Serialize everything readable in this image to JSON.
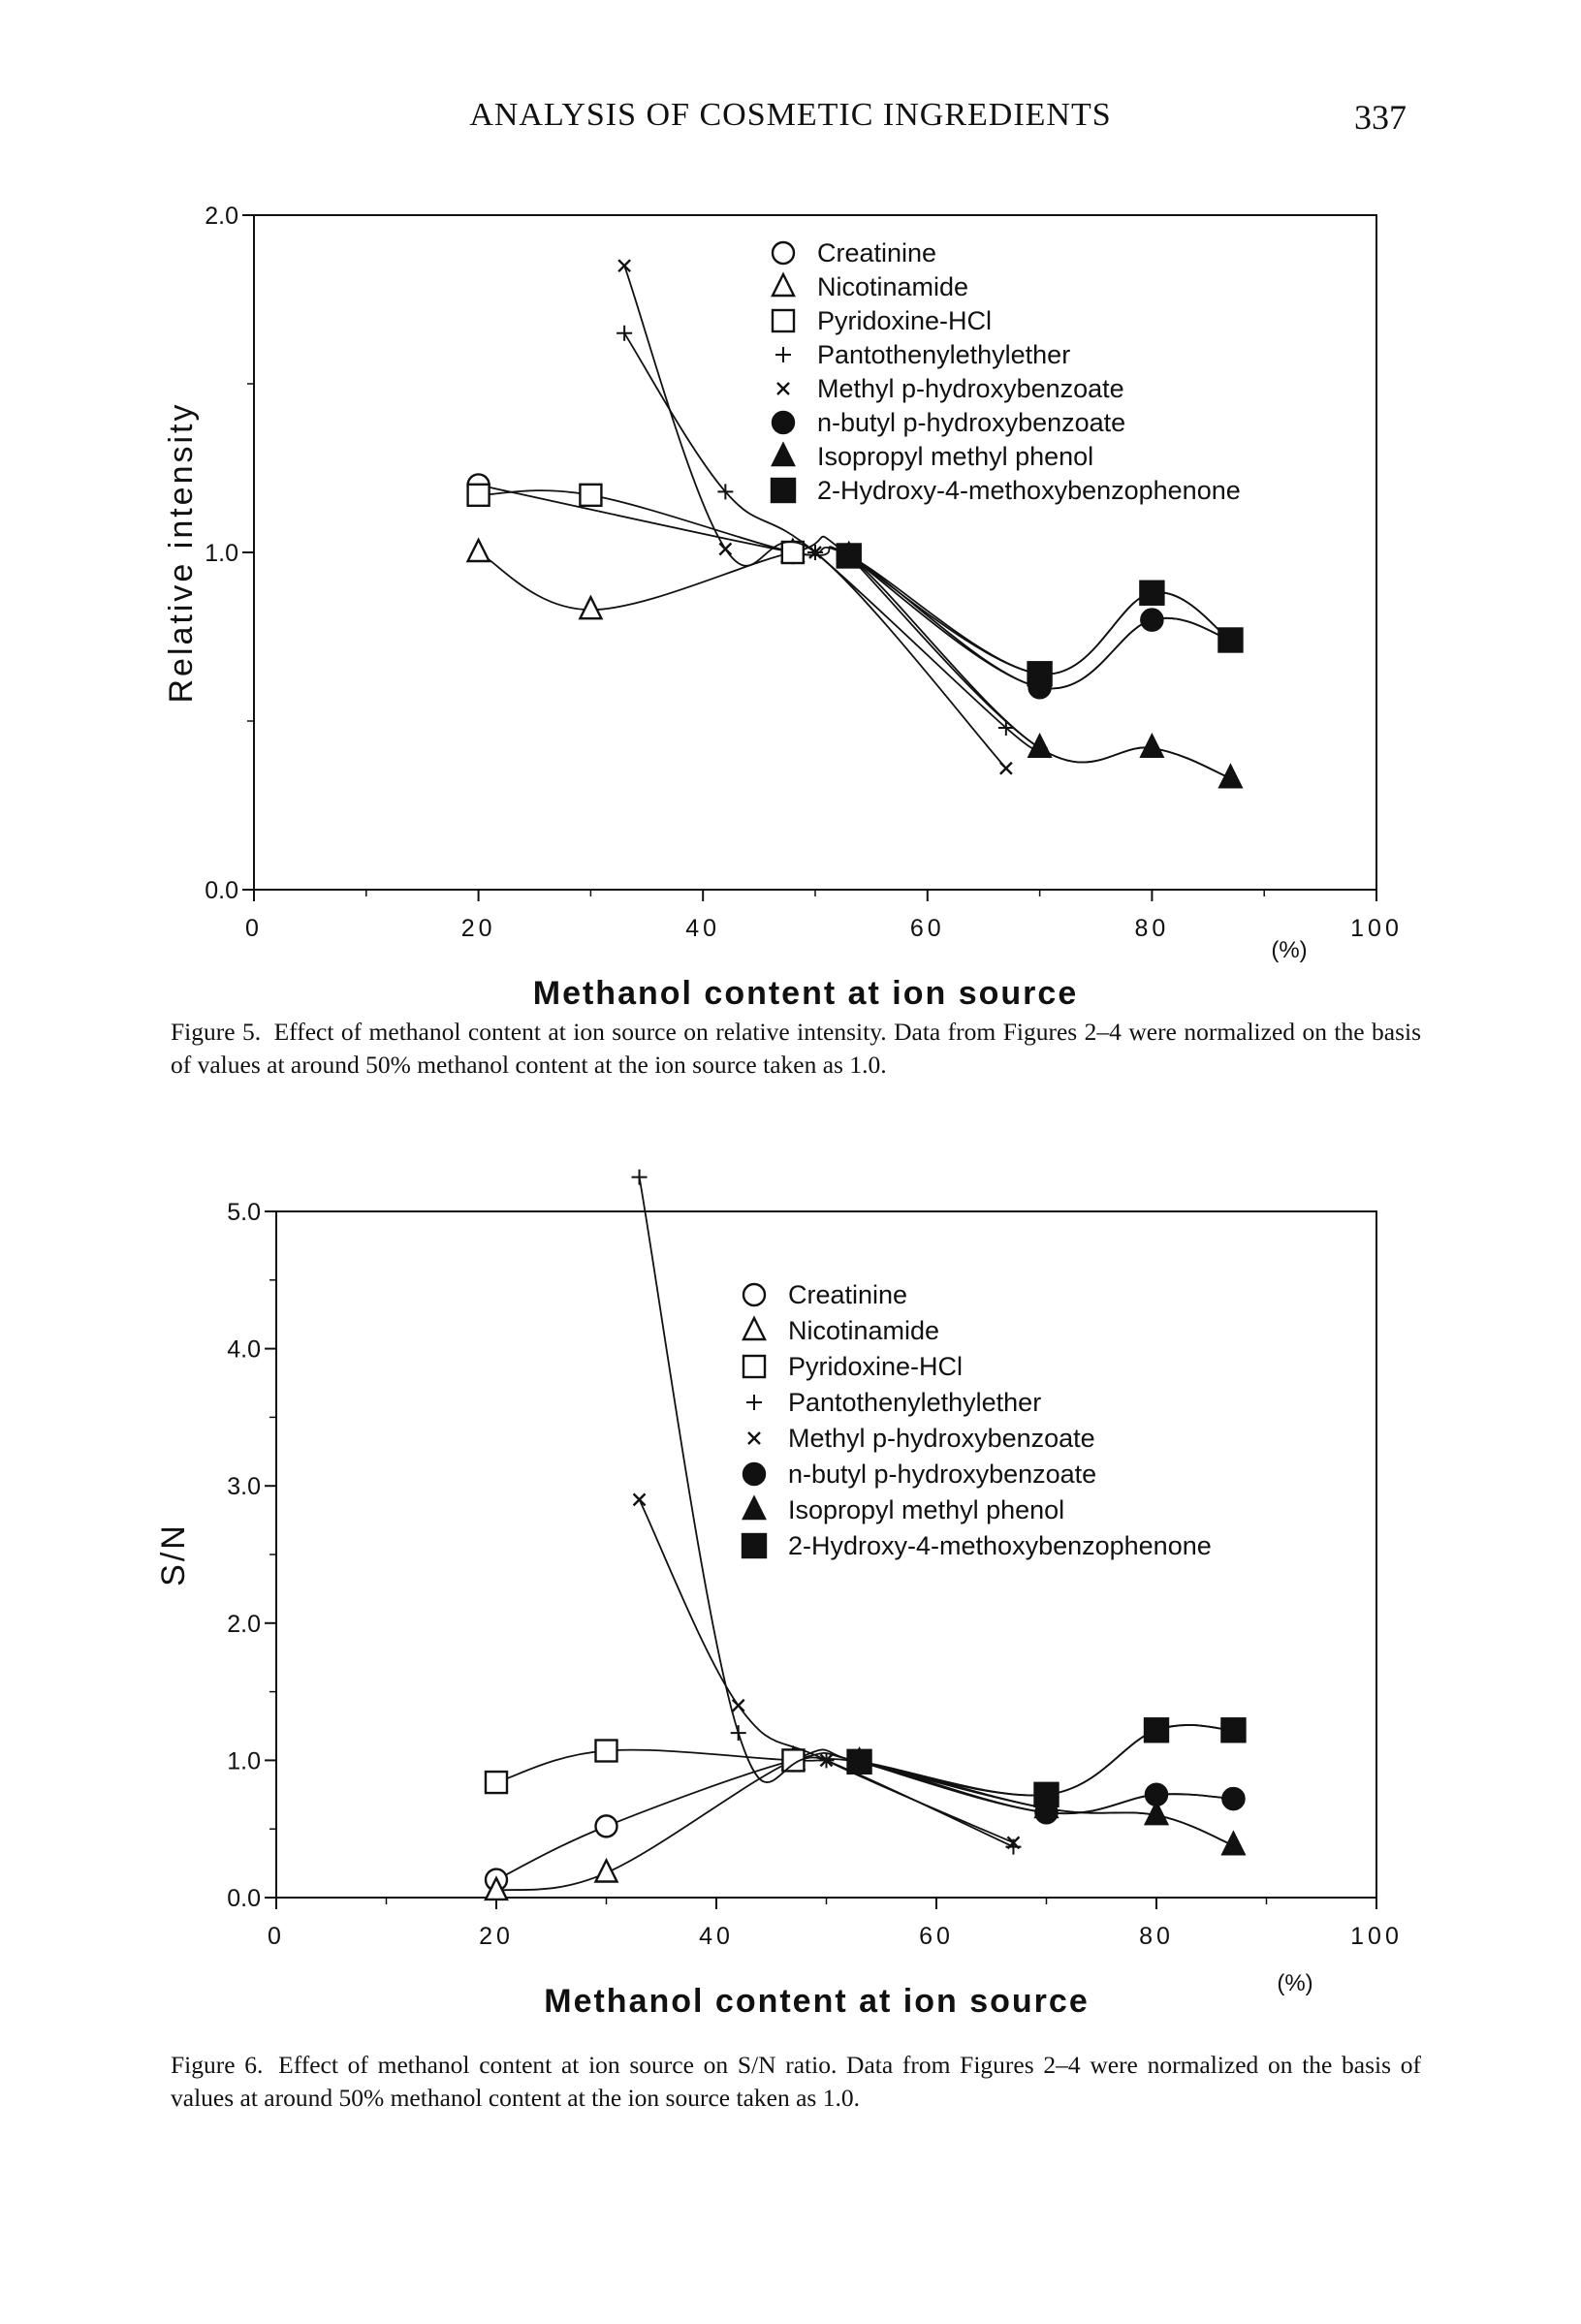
{
  "page": {
    "running_title": "ANALYSIS OF COSMETIC INGREDIENTS",
    "page_number": "337"
  },
  "figure5": {
    "caption_label": "Figure 5.",
    "caption_text": "Effect of methanol content at ion source on relative intensity. Data from Figures 2–4 were normalized on the basis of values at around 50% methanol content at the ion source taken as 1.0."
  },
  "figure6": {
    "caption_label": "Figure 6.",
    "caption_text": "Effect of methanol content at ion source on S/N ratio. Data from Figures 2–4 were normalized on the basis of values at around 50% methanol content at the ion source taken as 1.0."
  },
  "chart_data": [
    {
      "type": "line",
      "xlabel": "Methanol content at ion source",
      "xunit": "(%)",
      "ylabel": "Relative intensity",
      "xlim": [
        0,
        100
      ],
      "ylim": [
        0,
        2.0
      ],
      "xticks": [
        "0",
        "20",
        "40",
        "60",
        "80",
        "100"
      ],
      "yticks": [
        "0.0",
        "1.0",
        "2.0"
      ],
      "legend_position": "top-right",
      "series": [
        {
          "name": "Creatinine",
          "marker": "open-circle",
          "points": [
            [
              20,
              1.2
            ],
            [
              48,
              1.0
            ],
            [
              53,
              0.99
            ],
            [
              70,
              0.6
            ],
            [
              80,
              0.8
            ],
            [
              87,
              0.74
            ]
          ]
        },
        {
          "name": "Nicotinamide",
          "marker": "open-triangle",
          "points": [
            [
              20,
              1.0
            ],
            [
              30,
              0.83
            ],
            [
              48,
              1.0
            ],
            [
              53,
              0.99
            ],
            [
              70,
              0.42
            ],
            [
              80,
              0.42
            ],
            [
              87,
              0.33
            ]
          ]
        },
        {
          "name": "Pyridoxine-HCl",
          "marker": "open-square",
          "points": [
            [
              20,
              1.17
            ],
            [
              30,
              1.17
            ],
            [
              48,
              1.0
            ],
            [
              53,
              0.99
            ],
            [
              70,
              0.64
            ],
            [
              80,
              0.88
            ],
            [
              87,
              0.74
            ]
          ]
        },
        {
          "name": "Pantothenylethylether",
          "marker": "plus",
          "points": [
            [
              33,
              1.65
            ],
            [
              42,
              1.18
            ],
            [
              50,
              1.0
            ],
            [
              67,
              0.48
            ],
            [
              70,
              0.42
            ]
          ]
        },
        {
          "name": "Methyl p-hydroxybenzoate",
          "marker": "x",
          "points": [
            [
              33,
              1.85
            ],
            [
              42,
              1.01
            ],
            [
              50,
              1.0
            ],
            [
              67,
              0.36
            ]
          ]
        },
        {
          "name": "n-butyl p-hydroxybenzoate",
          "marker": "filled-circle",
          "points": [
            [
              53,
              0.99
            ],
            [
              70,
              0.6
            ],
            [
              80,
              0.8
            ],
            [
              87,
              0.74
            ]
          ]
        },
        {
          "name": "Isopropyl methyl phenol",
          "marker": "filled-triangle",
          "points": [
            [
              53,
              0.99
            ],
            [
              70,
              0.42
            ],
            [
              80,
              0.42
            ],
            [
              87,
              0.33
            ]
          ]
        },
        {
          "name": "2-Hydroxy-4-methoxybenzophenone",
          "marker": "filled-square",
          "points": [
            [
              53,
              0.99
            ],
            [
              70,
              0.64
            ],
            [
              80,
              0.88
            ],
            [
              87,
              0.74
            ]
          ]
        }
      ]
    },
    {
      "type": "line",
      "xlabel": "Methanol content at ion source",
      "xunit": "(%)",
      "ylabel": "S/N",
      "xlim": [
        0,
        100
      ],
      "ylim": [
        0,
        5.0
      ],
      "xticks": [
        "0",
        "20",
        "40",
        "60",
        "80",
        "100"
      ],
      "yticks": [
        "0.0",
        "1.0",
        "2.0",
        "3.0",
        "4.0",
        "5.0"
      ],
      "legend_position": "top-right",
      "series": [
        {
          "name": "Creatinine",
          "marker": "open-circle",
          "points": [
            [
              20,
              0.13
            ],
            [
              30,
              0.52
            ],
            [
              47,
              1.0
            ],
            [
              53,
              0.99
            ],
            [
              70,
              0.62
            ],
            [
              80,
              0.75
            ],
            [
              87,
              0.72
            ]
          ]
        },
        {
          "name": "Nicotinamide",
          "marker": "open-triangle",
          "points": [
            [
              20,
              0.05
            ],
            [
              30,
              0.18
            ],
            [
              47,
              1.0
            ],
            [
              53,
              0.99
            ],
            [
              70,
              0.65
            ],
            [
              80,
              0.6
            ],
            [
              87,
              0.38
            ]
          ]
        },
        {
          "name": "Pyridoxine-HCl",
          "marker": "open-square",
          "points": [
            [
              20,
              0.84
            ],
            [
              30,
              1.07
            ],
            [
              47,
              1.0
            ],
            [
              53,
              0.99
            ],
            [
              70,
              0.75
            ],
            [
              80,
              1.22
            ],
            [
              87,
              1.22
            ]
          ]
        },
        {
          "name": "Pantothenylethylether",
          "marker": "plus",
          "points": [
            [
              33,
              5.25
            ],
            [
              42,
              1.2
            ],
            [
              50,
              1.0
            ],
            [
              67,
              0.37
            ]
          ]
        },
        {
          "name": "Methyl p-hydroxybenzoate",
          "marker": "x",
          "points": [
            [
              33,
              2.9
            ],
            [
              42,
              1.4
            ],
            [
              50,
              1.0
            ],
            [
              67,
              0.4
            ]
          ]
        },
        {
          "name": "n-butyl p-hydroxybenzoate",
          "marker": "filled-circle",
          "points": [
            [
              53,
              0.99
            ],
            [
              70,
              0.62
            ],
            [
              80,
              0.75
            ],
            [
              87,
              0.72
            ]
          ]
        },
        {
          "name": "Isopropyl methyl phenol",
          "marker": "filled-triangle",
          "points": [
            [
              53,
              0.99
            ],
            [
              70,
              0.65
            ],
            [
              80,
              0.6
            ],
            [
              87,
              0.38
            ]
          ]
        },
        {
          "name": "2-Hydroxy-4-methoxybenzophenone",
          "marker": "filled-square",
          "points": [
            [
              53,
              0.99
            ],
            [
              70,
              0.75
            ],
            [
              80,
              1.22
            ],
            [
              87,
              1.22
            ]
          ]
        }
      ]
    }
  ]
}
